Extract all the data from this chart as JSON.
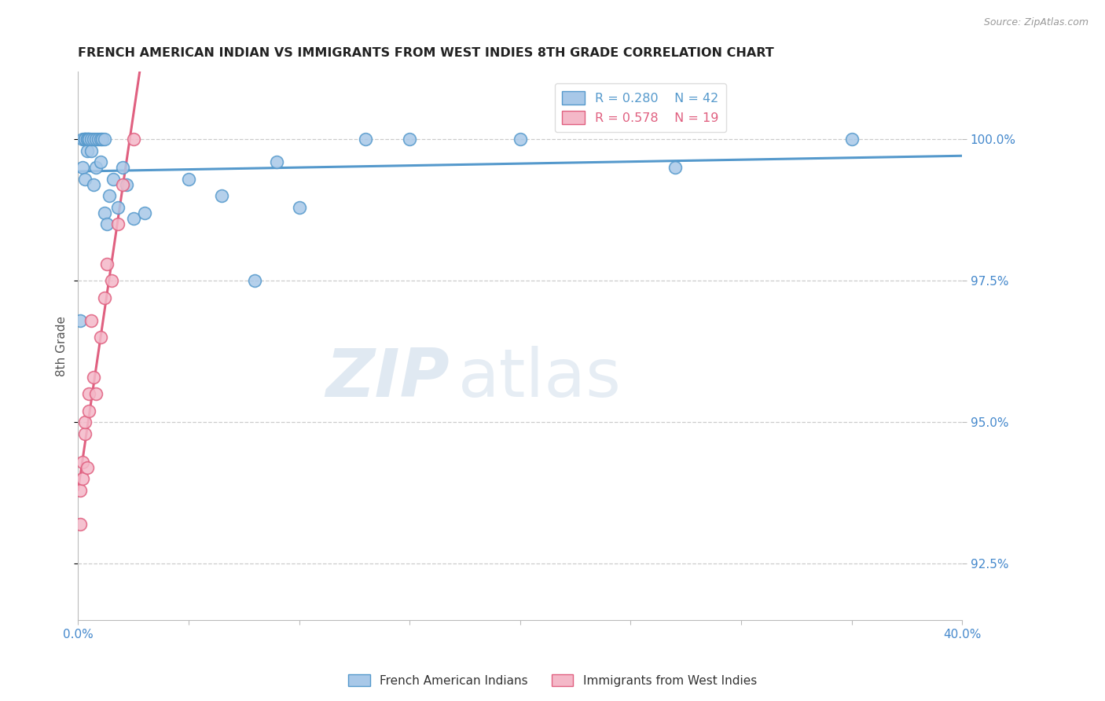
{
  "title": "FRENCH AMERICAN INDIAN VS IMMIGRANTS FROM WEST INDIES 8TH GRADE CORRELATION CHART",
  "source": "Source: ZipAtlas.com",
  "ylabel": "8th Grade",
  "legend_r1": "R = 0.280",
  "legend_n1": "N = 42",
  "legend_r2": "R = 0.578",
  "legend_n2": "N = 19",
  "blue_fill": "#a8c8e8",
  "blue_edge": "#5599cc",
  "pink_fill": "#f4b8c8",
  "pink_edge": "#e06080",
  "blue_line": "#5599cc",
  "pink_line": "#e06080",
  "title_color": "#222222",
  "axis_color": "#4488cc",
  "grid_color": "#cccccc",
  "bg_color": "#ffffff",
  "watermark_zip": "ZIP",
  "watermark_atlas": "atlas",
  "blue_x": [
    0.001,
    0.002,
    0.002,
    0.003,
    0.003,
    0.003,
    0.003,
    0.004,
    0.004,
    0.004,
    0.005,
    0.005,
    0.006,
    0.006,
    0.007,
    0.007,
    0.008,
    0.008,
    0.009,
    0.01,
    0.01,
    0.011,
    0.012,
    0.012,
    0.013,
    0.014,
    0.016,
    0.018,
    0.02,
    0.022,
    0.025,
    0.03,
    0.05,
    0.065,
    0.08,
    0.09,
    0.1,
    0.13,
    0.15,
    0.2,
    0.27,
    0.35
  ],
  "blue_y": [
    96.8,
    100.0,
    99.5,
    100.0,
    100.0,
    100.0,
    99.3,
    100.0,
    100.0,
    99.8,
    100.0,
    100.0,
    99.8,
    100.0,
    100.0,
    99.2,
    100.0,
    99.5,
    100.0,
    100.0,
    99.6,
    100.0,
    100.0,
    98.7,
    98.5,
    99.0,
    99.3,
    98.8,
    99.5,
    99.2,
    98.6,
    98.7,
    99.3,
    99.0,
    97.5,
    99.6,
    98.8,
    100.0,
    100.0,
    100.0,
    99.5,
    100.0
  ],
  "pink_x": [
    0.001,
    0.001,
    0.002,
    0.002,
    0.003,
    0.003,
    0.004,
    0.005,
    0.005,
    0.006,
    0.007,
    0.008,
    0.01,
    0.012,
    0.013,
    0.015,
    0.018,
    0.02,
    0.025
  ],
  "pink_y": [
    93.2,
    93.8,
    94.3,
    94.0,
    94.8,
    95.0,
    94.2,
    95.5,
    95.2,
    96.8,
    95.8,
    95.5,
    96.5,
    97.2,
    97.8,
    97.5,
    98.5,
    99.2,
    100.0
  ],
  "xlim_lo": 0.0,
  "xlim_hi": 0.4,
  "ylim_lo": 91.5,
  "ylim_hi": 101.2,
  "yticks": [
    92.5,
    95.0,
    97.5,
    100.0
  ],
  "xticks": [
    0.0,
    0.05,
    0.1,
    0.15,
    0.2,
    0.25,
    0.3,
    0.35,
    0.4
  ]
}
